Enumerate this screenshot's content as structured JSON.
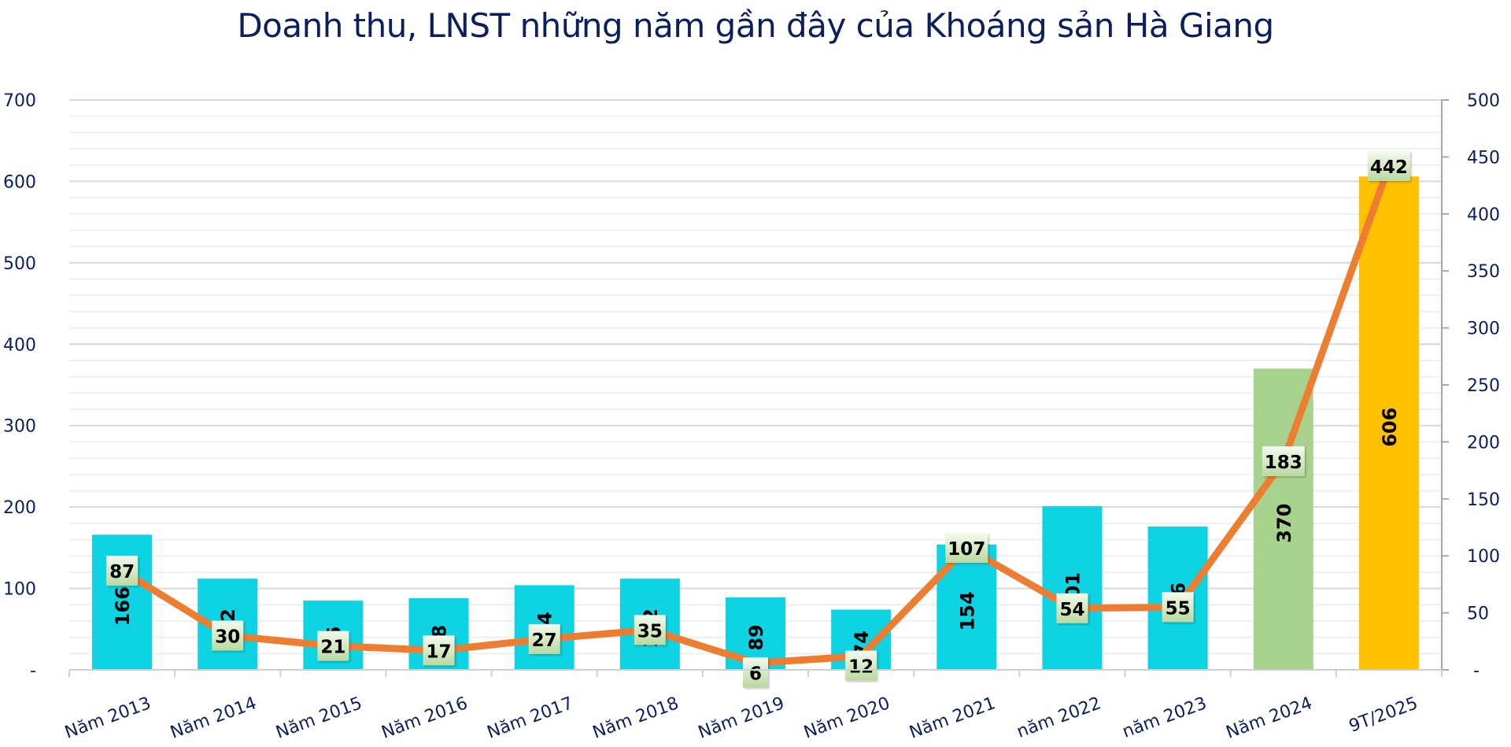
{
  "title": "Doanh thu, LNST những năm gần đây của Khoáng sản Hà Giang",
  "colors": {
    "title": "#0b1f5c",
    "axis_text": "#0b1f5c",
    "bar_default": "#0DD3E3",
    "bar_2024": "#A9D18E",
    "bar_9T2025": "#FFC000",
    "line": "#ED7D31",
    "grid_major": "#d9d9d9",
    "grid_minor": "#efefef",
    "label_box_top": "#f4faee",
    "label_box_bottom": "#b9d9a0"
  },
  "chart_data": {
    "type": "bar+line",
    "title": "Doanh thu, LNST những năm gần đây của Khoáng sản Hà Giang",
    "categories": [
      "Năm 2013",
      "Năm 2014",
      "Năm 2015",
      "Năm 2016",
      "Năm 2017",
      "Năm 2018",
      "Năm 2019",
      "Năm 2020",
      "Năm 2021",
      "năm 2022",
      "năm 2023",
      "Năm 2024",
      "9T/2025"
    ],
    "series": [
      {
        "name": "Doanh thu",
        "type": "bar",
        "axis": "left",
        "values": [
          166,
          112,
          85,
          88,
          104,
          112,
          89,
          74,
          154,
          201,
          176,
          370,
          606
        ],
        "bar_colors": [
          "#0DD3E3",
          "#0DD3E3",
          "#0DD3E3",
          "#0DD3E3",
          "#0DD3E3",
          "#0DD3E3",
          "#0DD3E3",
          "#0DD3E3",
          "#0DD3E3",
          "#0DD3E3",
          "#0DD3E3",
          "#A9D18E",
          "#FFC000"
        ]
      },
      {
        "name": "LNST",
        "type": "line",
        "axis": "right",
        "values": [
          87,
          30,
          21,
          17,
          27,
          35,
          6,
          12,
          107,
          54,
          55,
          183,
          442
        ]
      }
    ],
    "left_axis": {
      "ylim": [
        0,
        700
      ],
      "ticks": [
        "-",
        "100",
        "200",
        "300",
        "400",
        "500",
        "600",
        "700"
      ]
    },
    "right_axis": {
      "ylim": [
        0,
        500
      ],
      "ticks": [
        "-",
        "50",
        "100",
        "150",
        "200",
        "250",
        "300",
        "350",
        "400",
        "450",
        "500"
      ]
    },
    "grid": true,
    "legend": "none",
    "xlabel": "",
    "ylabel": ""
  }
}
